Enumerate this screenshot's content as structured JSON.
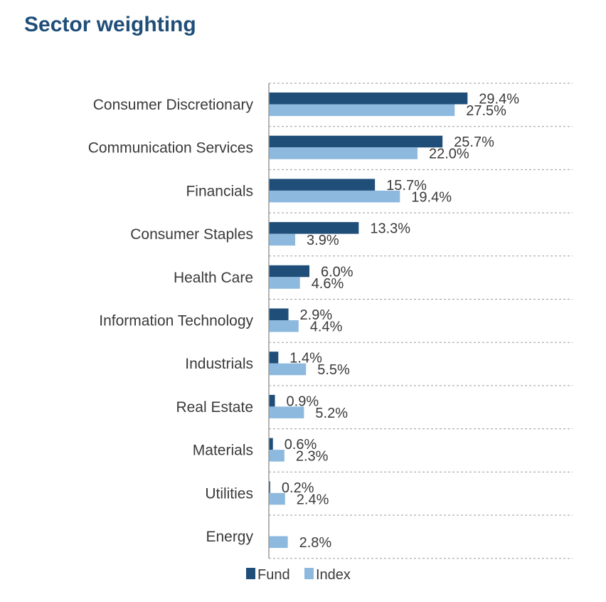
{
  "title": "Sector weighting",
  "chart_data": {
    "type": "bar",
    "orientation": "horizontal",
    "categories": [
      "Consumer Discretionary",
      "Communication Services",
      "Financials",
      "Consumer Staples",
      "Health Care",
      "Information Technology",
      "Industrials",
      "Real Estate",
      "Materials",
      "Utilities",
      "Energy"
    ],
    "series": [
      {
        "name": "Fund",
        "color": "#1f4e79",
        "values": [
          29.4,
          25.7,
          15.7,
          13.3,
          6.0,
          2.9,
          1.4,
          0.9,
          0.6,
          0.2,
          0.0
        ],
        "labels": [
          "29.4%",
          "25.7%",
          "15.7%",
          "13.3%",
          "6.0%",
          "2.9%",
          "1.4%",
          "0.9%",
          "0.6%",
          "0.2%",
          ""
        ]
      },
      {
        "name": "Index",
        "color": "#8db9df",
        "values": [
          27.5,
          22.0,
          19.4,
          3.9,
          4.6,
          4.4,
          5.5,
          5.2,
          2.3,
          2.4,
          2.8
        ],
        "labels": [
          "27.5%",
          "22.0%",
          "19.4%",
          "3.9%",
          "4.6%",
          "4.4%",
          "5.5%",
          "5.2%",
          "2.3%",
          "2.4%",
          "2.8%"
        ]
      }
    ],
    "grid": "dashed-horizontal",
    "legend_position": "bottom"
  }
}
